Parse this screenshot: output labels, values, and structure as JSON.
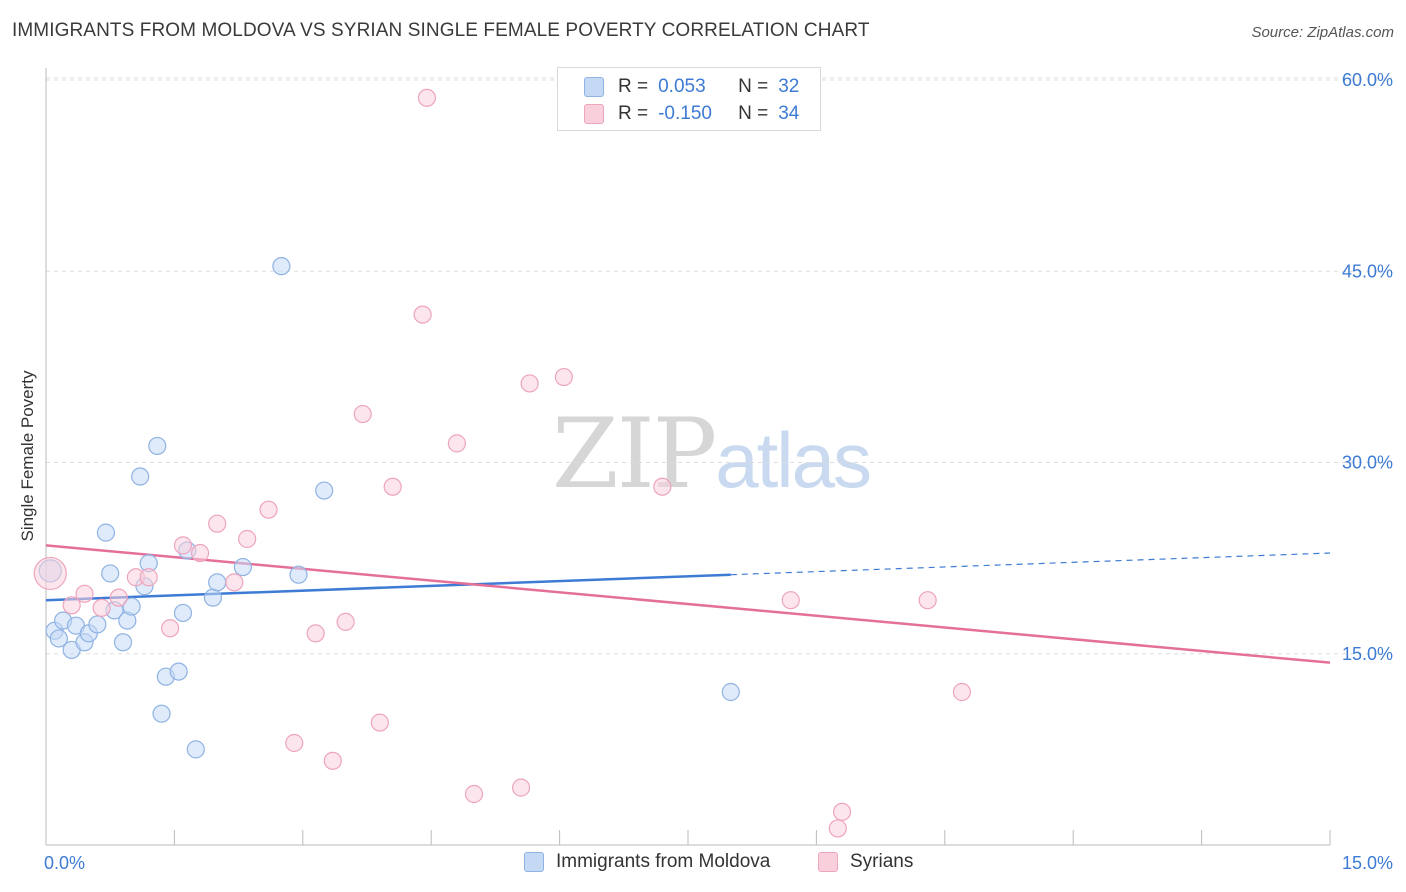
{
  "title": "IMMIGRANTS FROM MOLDOVA VS SYRIAN SINGLE FEMALE POVERTY CORRELATION CHART",
  "source": "Source: ZipAtlas.com",
  "watermark": {
    "zip": "ZIP",
    "atlas": "atlas"
  },
  "colors": {
    "blue": "#3d7bd4",
    "blue_fill": "#c5d9f5",
    "blue_stroke": "#8fb3e3",
    "pink": "#e4709a",
    "pink_fill": "#f9cfdc",
    "pink_stroke": "#eda4bd",
    "grid": "#dddddd",
    "axis_text": "#3d7bd4"
  },
  "legend": {
    "rows": [
      {
        "r_label": "R =",
        "r_value": "0.053",
        "n_label": "N =",
        "n_value": "32"
      },
      {
        "r_label": "R =",
        "r_value": "-0.150",
        "n_label": "N =",
        "n_value": "34"
      }
    ]
  },
  "bottom_legend": {
    "series1": "Immigrants from Moldova",
    "series2": "Syrians"
  },
  "chart_data": {
    "type": "scatter",
    "title": "IMMIGRANTS FROM MOLDOVA VS SYRIAN SINGLE FEMALE POVERTY CORRELATION CHART",
    "xlabel": "",
    "ylabel": "Single Female Poverty",
    "xlim": [
      0,
      15
    ],
    "ylim": [
      0,
      60
    ],
    "x_tick_labels": [
      "0.0%",
      "15.0%"
    ],
    "y_ticks": [
      15,
      30,
      45,
      60
    ],
    "y_tick_labels": [
      "15.0%",
      "30.0%",
      "45.0%",
      "60.0%"
    ],
    "grid": true,
    "series": [
      {
        "name": "Immigrants from Moldova",
        "color": "#3d7bd4",
        "points": [
          [
            0.05,
            21.5
          ],
          [
            0.1,
            16.8
          ],
          [
            0.15,
            16.2
          ],
          [
            0.2,
            17.6
          ],
          [
            0.3,
            15.3
          ],
          [
            0.35,
            17.2
          ],
          [
            0.45,
            15.9
          ],
          [
            0.5,
            16.6
          ],
          [
            0.6,
            17.3
          ],
          [
            0.7,
            24.5
          ],
          [
            0.75,
            21.3
          ],
          [
            0.8,
            18.4
          ],
          [
            0.9,
            15.9
          ],
          [
            0.95,
            17.6
          ],
          [
            1.0,
            18.7
          ],
          [
            1.1,
            28.9
          ],
          [
            1.15,
            20.3
          ],
          [
            1.2,
            22.1
          ],
          [
            1.3,
            31.3
          ],
          [
            1.35,
            10.3
          ],
          [
            1.4,
            13.2
          ],
          [
            1.55,
            13.6
          ],
          [
            1.6,
            18.2
          ],
          [
            1.65,
            23.1
          ],
          [
            1.75,
            7.5
          ],
          [
            1.95,
            19.4
          ],
          [
            2.0,
            20.6
          ],
          [
            2.3,
            21.8
          ],
          [
            2.75,
            45.4
          ],
          [
            2.95,
            21.2
          ],
          [
            3.25,
            27.8
          ],
          [
            8.0,
            12.0
          ]
        ],
        "trend": {
          "x": [
            0,
            8.0
          ],
          "y": [
            19.2,
            21.2
          ],
          "dashed_to": [
            15,
            22.9
          ]
        }
      },
      {
        "name": "Syrians",
        "color": "#e4709a",
        "points": [
          [
            0.05,
            21.3
          ],
          [
            0.3,
            18.8
          ],
          [
            0.45,
            19.7
          ],
          [
            0.65,
            18.6
          ],
          [
            0.85,
            19.4
          ],
          [
            1.05,
            21.0
          ],
          [
            1.2,
            21.0
          ],
          [
            1.45,
            17.0
          ],
          [
            1.6,
            23.5
          ],
          [
            1.8,
            22.9
          ],
          [
            2.0,
            25.2
          ],
          [
            2.2,
            20.6
          ],
          [
            2.35,
            24.0
          ],
          [
            2.6,
            26.3
          ],
          [
            2.9,
            8.0
          ],
          [
            3.15,
            16.6
          ],
          [
            3.35,
            6.6
          ],
          [
            3.5,
            17.5
          ],
          [
            3.7,
            33.8
          ],
          [
            3.9,
            9.6
          ],
          [
            4.05,
            28.1
          ],
          [
            4.4,
            41.6
          ],
          [
            4.45,
            58.6
          ],
          [
            4.8,
            31.5
          ],
          [
            5.0,
            4.0
          ],
          [
            5.55,
            4.5
          ],
          [
            5.65,
            36.2
          ],
          [
            6.05,
            36.7
          ],
          [
            7.2,
            28.1
          ],
          [
            8.7,
            19.2
          ],
          [
            9.25,
            1.3
          ],
          [
            9.3,
            2.6
          ],
          [
            10.3,
            19.2
          ],
          [
            10.7,
            12.0
          ]
        ],
        "trend": {
          "x": [
            0,
            15
          ],
          "y": [
            23.5,
            14.3
          ]
        }
      }
    ]
  }
}
